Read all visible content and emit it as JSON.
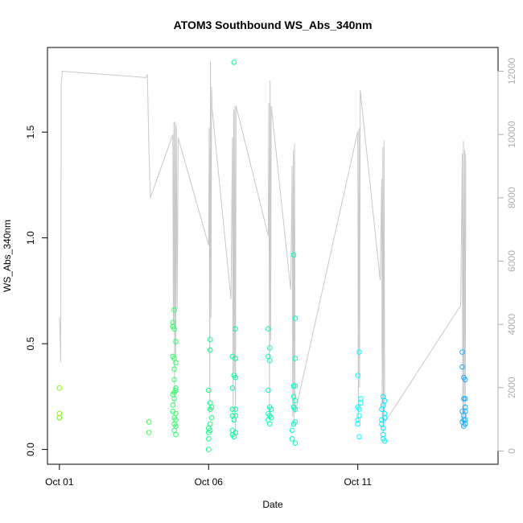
{
  "chart_data": {
    "type": "scatter",
    "title": "ATOM3 Southbound WS_Abs_340nm",
    "xlabel": "Date",
    "ylabel": "WS_Abs_340nm",
    "x_tick_labels": [
      "Oct 01",
      "Oct 06",
      "Oct 11"
    ],
    "x_tick_days": [
      1,
      6,
      11
    ],
    "xlim_days": [
      0.6,
      15.7
    ],
    "ylim": [
      -0.07,
      1.9
    ],
    "y_ticks": [
      0.0,
      0.5,
      1.0,
      1.5
    ],
    "y_tick_labels": [
      "0.0",
      "0.5",
      "1.0",
      "1.5"
    ],
    "y2lim": [
      -420,
      12750
    ],
    "y2_ticks": [
      0,
      2000,
      4000,
      6000,
      8000,
      10000,
      12000
    ],
    "y2_tick_labels": [
      "0",
      "2000",
      "4000",
      "6000",
      "8000",
      "10000",
      "12000"
    ],
    "grid": false,
    "legend": "none",
    "colors": {
      "marker_start": "#7fff00",
      "marker_mid": "#00ff99",
      "marker_late": "#00ffff",
      "marker_end": "#1e90ff",
      "line": "#c8c8c8",
      "axis": "#000000",
      "right_axis": "#b0b0b0"
    },
    "points": [
      {
        "x": 1.0,
        "y": 0.29
      },
      {
        "x": 1.0,
        "y": 0.17
      },
      {
        "x": 1.0,
        "y": 0.15
      },
      {
        "x": 1.0,
        "y": 0.15
      },
      {
        "x": 4.0,
        "y": 0.13
      },
      {
        "x": 4.0,
        "y": 0.08
      },
      {
        "x": 4.8,
        "y": 0.6
      },
      {
        "x": 4.8,
        "y": 0.58
      },
      {
        "x": 4.8,
        "y": 0.44
      },
      {
        "x": 4.8,
        "y": 0.26
      },
      {
        "x": 4.8,
        "y": 0.21
      },
      {
        "x": 4.8,
        "y": 0.18
      },
      {
        "x": 4.85,
        "y": 0.66
      },
      {
        "x": 4.85,
        "y": 0.57
      },
      {
        "x": 4.85,
        "y": 0.43
      },
      {
        "x": 4.85,
        "y": 0.38
      },
      {
        "x": 4.85,
        "y": 0.33
      },
      {
        "x": 4.85,
        "y": 0.27
      },
      {
        "x": 4.85,
        "y": 0.24
      },
      {
        "x": 4.85,
        "y": 0.15
      },
      {
        "x": 4.85,
        "y": 0.12
      },
      {
        "x": 4.85,
        "y": 0.09
      },
      {
        "x": 4.9,
        "y": 0.51
      },
      {
        "x": 4.9,
        "y": 0.41
      },
      {
        "x": 4.9,
        "y": 0.29
      },
      {
        "x": 4.9,
        "y": 0.28
      },
      {
        "x": 4.9,
        "y": 0.17
      },
      {
        "x": 4.9,
        "y": 0.14
      },
      {
        "x": 4.9,
        "y": 0.11
      },
      {
        "x": 4.9,
        "y": 0.07
      },
      {
        "x": 6.0,
        "y": 0.28
      },
      {
        "x": 6.0,
        "y": 0.1
      },
      {
        "x": 6.0,
        "y": 0.08
      },
      {
        "x": 6.0,
        "y": 0.05
      },
      {
        "x": 6.0,
        "y": 0.0
      },
      {
        "x": 6.05,
        "y": 0.52
      },
      {
        "x": 6.05,
        "y": 0.47
      },
      {
        "x": 6.05,
        "y": 0.22
      },
      {
        "x": 6.05,
        "y": 0.19
      },
      {
        "x": 6.05,
        "y": 0.12
      },
      {
        "x": 6.05,
        "y": 0.09
      },
      {
        "x": 6.1,
        "y": 0.2
      },
      {
        "x": 6.1,
        "y": 0.15
      },
      {
        "x": 6.8,
        "y": 0.44
      },
      {
        "x": 6.8,
        "y": 0.29
      },
      {
        "x": 6.8,
        "y": 0.19
      },
      {
        "x": 6.8,
        "y": 0.16
      },
      {
        "x": 6.8,
        "y": 0.09
      },
      {
        "x": 6.8,
        "y": 0.07
      },
      {
        "x": 6.85,
        "y": 1.83
      },
      {
        "x": 6.85,
        "y": 0.35
      },
      {
        "x": 6.85,
        "y": 0.14
      },
      {
        "x": 6.85,
        "y": 0.06
      },
      {
        "x": 6.9,
        "y": 0.57
      },
      {
        "x": 6.9,
        "y": 0.43
      },
      {
        "x": 6.9,
        "y": 0.34
      },
      {
        "x": 6.9,
        "y": 0.19
      },
      {
        "x": 6.9,
        "y": 0.16
      },
      {
        "x": 6.9,
        "y": 0.08
      },
      {
        "x": 8.0,
        "y": 0.57
      },
      {
        "x": 8.0,
        "y": 0.44
      },
      {
        "x": 8.0,
        "y": 0.28
      },
      {
        "x": 8.0,
        "y": 0.17
      },
      {
        "x": 8.0,
        "y": 0.14
      },
      {
        "x": 8.05,
        "y": 0.48
      },
      {
        "x": 8.05,
        "y": 0.42
      },
      {
        "x": 8.05,
        "y": 0.2
      },
      {
        "x": 8.05,
        "y": 0.16
      },
      {
        "x": 8.05,
        "y": 0.12
      },
      {
        "x": 8.1,
        "y": 0.19
      },
      {
        "x": 8.1,
        "y": 0.15
      },
      {
        "x": 8.8,
        "y": 0.09
      },
      {
        "x": 8.8,
        "y": 0.05
      },
      {
        "x": 8.85,
        "y": 0.92
      },
      {
        "x": 8.85,
        "y": 0.3
      },
      {
        "x": 8.85,
        "y": 0.25
      },
      {
        "x": 8.85,
        "y": 0.2
      },
      {
        "x": 8.85,
        "y": 0.12
      },
      {
        "x": 8.9,
        "y": 0.62
      },
      {
        "x": 8.9,
        "y": 0.43
      },
      {
        "x": 8.9,
        "y": 0.3
      },
      {
        "x": 8.9,
        "y": 0.23
      },
      {
        "x": 8.9,
        "y": 0.19
      },
      {
        "x": 8.9,
        "y": 0.13
      },
      {
        "x": 8.9,
        "y": 0.03
      },
      {
        "x": 11.0,
        "y": 0.35
      },
      {
        "x": 11.0,
        "y": 0.2
      },
      {
        "x": 11.0,
        "y": 0.14
      },
      {
        "x": 11.0,
        "y": 0.12
      },
      {
        "x": 11.05,
        "y": 0.46
      },
      {
        "x": 11.05,
        "y": 0.19
      },
      {
        "x": 11.05,
        "y": 0.16
      },
      {
        "x": 11.05,
        "y": 0.06
      },
      {
        "x": 11.1,
        "y": 0.24
      },
      {
        "x": 11.1,
        "y": 0.22
      },
      {
        "x": 11.8,
        "y": 0.19
      },
      {
        "x": 11.8,
        "y": 0.14
      },
      {
        "x": 11.8,
        "y": 0.12
      },
      {
        "x": 11.85,
        "y": 0.25
      },
      {
        "x": 11.85,
        "y": 0.21
      },
      {
        "x": 11.85,
        "y": 0.1
      },
      {
        "x": 11.85,
        "y": 0.07
      },
      {
        "x": 11.85,
        "y": 0.05
      },
      {
        "x": 11.9,
        "y": 0.23
      },
      {
        "x": 11.9,
        "y": 0.17
      },
      {
        "x": 11.9,
        "y": 0.15
      },
      {
        "x": 11.9,
        "y": 0.04
      },
      {
        "x": 14.5,
        "y": 0.46
      },
      {
        "x": 14.5,
        "y": 0.39
      },
      {
        "x": 14.5,
        "y": 0.18
      },
      {
        "x": 14.5,
        "y": 0.13
      },
      {
        "x": 14.55,
        "y": 0.34
      },
      {
        "x": 14.55,
        "y": 0.24
      },
      {
        "x": 14.55,
        "y": 0.16
      },
      {
        "x": 14.55,
        "y": 0.14
      },
      {
        "x": 14.55,
        "y": 0.11
      },
      {
        "x": 14.6,
        "y": 0.33
      },
      {
        "x": 14.6,
        "y": 0.24
      },
      {
        "x": 14.6,
        "y": 0.2
      },
      {
        "x": 14.6,
        "y": 0.18
      },
      {
        "x": 14.6,
        "y": 0.14
      },
      {
        "x": 14.6,
        "y": 0.12
      }
    ],
    "line_series_right_axis": [
      {
        "x": 1.0,
        "y": 4200
      },
      {
        "x": 1.02,
        "y": 3800
      },
      {
        "x": 1.04,
        "y": 2800
      },
      {
        "x": 1.06,
        "y": 11600
      },
      {
        "x": 1.1,
        "y": 12000
      },
      {
        "x": 3.9,
        "y": 11800
      },
      {
        "x": 3.95,
        "y": 11900
      },
      {
        "x": 4.0,
        "y": 9500
      },
      {
        "x": 4.05,
        "y": 8000
      },
      {
        "x": 4.8,
        "y": 10000
      },
      {
        "x": 4.82,
        "y": 4000
      },
      {
        "x": 4.84,
        "y": 10400
      },
      {
        "x": 4.86,
        "y": 1500
      },
      {
        "x": 4.88,
        "y": 10400
      },
      {
        "x": 4.9,
        "y": 3000
      },
      {
        "x": 4.92,
        "y": 10300
      },
      {
        "x": 4.95,
        "y": 4500
      },
      {
        "x": 4.98,
        "y": 9900
      },
      {
        "x": 6.0,
        "y": 6500
      },
      {
        "x": 6.02,
        "y": 10200
      },
      {
        "x": 6.04,
        "y": 1200
      },
      {
        "x": 6.06,
        "y": 12300
      },
      {
        "x": 6.08,
        "y": 4200
      },
      {
        "x": 6.1,
        "y": 11500
      },
      {
        "x": 6.12,
        "y": 10800
      },
      {
        "x": 6.75,
        "y": 4800
      },
      {
        "x": 6.8,
        "y": 9900
      },
      {
        "x": 6.82,
        "y": 900
      },
      {
        "x": 6.84,
        "y": 10800
      },
      {
        "x": 6.86,
        "y": 2500
      },
      {
        "x": 6.88,
        "y": 10900
      },
      {
        "x": 6.9,
        "y": 500
      },
      {
        "x": 6.92,
        "y": 10900
      },
      {
        "x": 8.0,
        "y": 6800
      },
      {
        "x": 8.02,
        "y": 11000
      },
      {
        "x": 8.04,
        "y": 1000
      },
      {
        "x": 8.06,
        "y": 11700
      },
      {
        "x": 8.08,
        "y": 3500
      },
      {
        "x": 8.1,
        "y": 10900
      },
      {
        "x": 8.75,
        "y": 5100
      },
      {
        "x": 8.8,
        "y": 9000
      },
      {
        "x": 8.82,
        "y": 1100
      },
      {
        "x": 8.84,
        "y": 9500
      },
      {
        "x": 8.86,
        "y": 800
      },
      {
        "x": 8.88,
        "y": 9700
      },
      {
        "x": 8.9,
        "y": 1200
      },
      {
        "x": 11.0,
        "y": 10100
      },
      {
        "x": 11.02,
        "y": 900
      },
      {
        "x": 11.04,
        "y": 10200
      },
      {
        "x": 11.06,
        "y": 2000
      },
      {
        "x": 11.08,
        "y": 11400
      },
      {
        "x": 11.75,
        "y": 5400
      },
      {
        "x": 11.8,
        "y": 8600
      },
      {
        "x": 11.82,
        "y": 700
      },
      {
        "x": 11.84,
        "y": 9600
      },
      {
        "x": 11.86,
        "y": 600
      },
      {
        "x": 11.88,
        "y": 9800
      },
      {
        "x": 11.9,
        "y": 900
      },
      {
        "x": 14.45,
        "y": 4600
      },
      {
        "x": 14.5,
        "y": 9400
      },
      {
        "x": 14.52,
        "y": 700
      },
      {
        "x": 14.54,
        "y": 9800
      },
      {
        "x": 14.56,
        "y": 1000
      },
      {
        "x": 14.58,
        "y": 9500
      },
      {
        "x": 14.6,
        "y": 800
      },
      {
        "x": 14.62,
        "y": 9400
      }
    ]
  }
}
